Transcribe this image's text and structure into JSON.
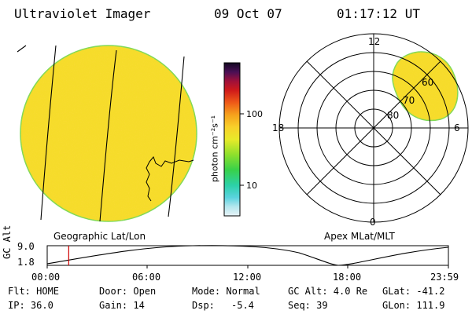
{
  "header": {
    "instrument": "Ultraviolet Imager",
    "date": "09 Oct 07",
    "time": "01:17:12 UT"
  },
  "colors": {
    "disk_fill": "#f6dc2a",
    "disk_edge": "#7ed957",
    "grid_line": "#000000",
    "timeline_marker": "#d00000"
  },
  "colorbar": {
    "label": "photon cm⁻²s⁻¹",
    "ticks": [
      {
        "label": "100",
        "value": 100
      },
      {
        "label": "10",
        "value": 10
      }
    ],
    "scale": "log"
  },
  "left_panel": {
    "caption": "Geographic Lat/Lon"
  },
  "right_panel": {
    "caption": "Apex MLat/MLT",
    "mlt_labels": {
      "top": "12",
      "left": "18",
      "right": "6",
      "bottom": "0"
    },
    "mlat_labels": [
      "60",
      "70",
      "80"
    ]
  },
  "timeline": {
    "axis_label": "GC Alt",
    "y_labels": {
      "top": "9.0",
      "bottom": "1.8"
    },
    "x_ticks": [
      "00:00",
      "06:00",
      "12:00",
      "18:00",
      "23:59"
    ],
    "marker_time_hours": 1.287
  },
  "status": {
    "row1": {
      "flt": "Flt: HOME",
      "door": "Door: Open",
      "mode": "Mode: Normal",
      "gcalt": "GC Alt: 4.0 Re",
      "glat": "GLat: -41.2"
    },
    "row2": {
      "ip": "IP: 36.0",
      "gain": "Gain: 14",
      "dsp_label": "Dsp:",
      "dsp_value": "-5.4",
      "seq": "Seq: 39",
      "glon": "GLon: 111.9"
    }
  }
}
